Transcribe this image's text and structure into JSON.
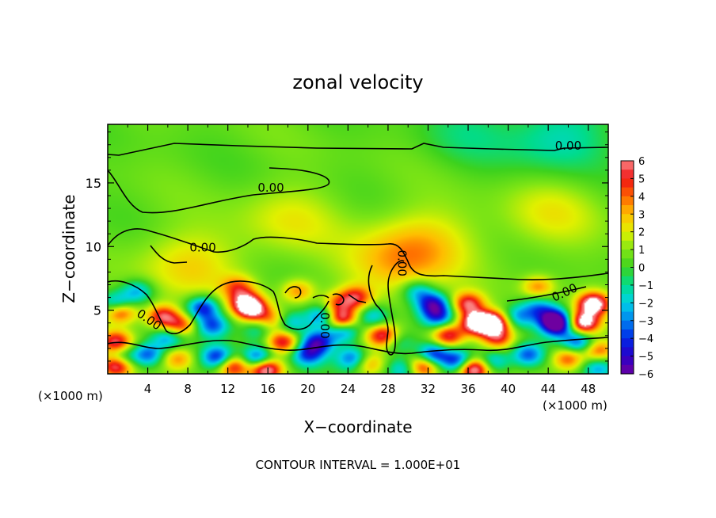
{
  "chart_data": {
    "type": "heatmap",
    "title": "zonal velocity",
    "xlabel": "X−coordinate",
    "ylabel": "Z−coordinate",
    "x_unit": "(×1000 m)",
    "y_unit": "(×1000 m)",
    "xlim": [
      0,
      50
    ],
    "ylim": [
      0,
      19.6
    ],
    "xticks": [
      4,
      8,
      12,
      16,
      20,
      24,
      28,
      32,
      36,
      40,
      44,
      48
    ],
    "yticks": [
      5,
      10,
      15
    ],
    "colorbar": {
      "min": -6,
      "max": 6,
      "ticks": [
        6,
        5,
        4,
        3,
        2,
        1,
        0,
        -1,
        -2,
        -3,
        -4,
        -5,
        -6
      ],
      "tick_labels": [
        "6",
        "5",
        "4",
        "3",
        "2",
        "1",
        "0",
        "−1",
        "−2",
        "−3",
        "−4",
        "−5",
        "−6"
      ]
    },
    "contour_labels": [
      {
        "text": "0.00",
        "x": 46,
        "y": 17.6
      },
      {
        "text": "0.00",
        "x": 16.3,
        "y": 14.3
      },
      {
        "text": "0.00",
        "x": 9.5,
        "y": 9.6
      },
      {
        "text": "0.00",
        "x": 29,
        "y": 8.7
      },
      {
        "text": "0.00",
        "x": 45.8,
        "y": 6.1
      },
      {
        "text": "0.00",
        "x": 3.9,
        "y": 4.0
      },
      {
        "text": "0.00",
        "x": 21.3,
        "y": 3.8
      }
    ],
    "features": [
      {
        "x": 1,
        "y": 5.4,
        "v": -6
      },
      {
        "x": 1.2,
        "y": 5,
        "v": 7
      },
      {
        "x": 0.8,
        "y": 2.5,
        "v": 5
      },
      {
        "x": 1.3,
        "y": 1.2,
        "v": -4
      },
      {
        "x": 0.9,
        "y": 0.7,
        "v": 7
      },
      {
        "x": 3,
        "y": 6.5,
        "v": -3
      },
      {
        "x": 5.5,
        "y": 4.5,
        "v": 5
      },
      {
        "x": 7.3,
        "y": 3.8,
        "v": 4
      },
      {
        "x": 6,
        "y": 2.8,
        "v": -3
      },
      {
        "x": 4,
        "y": 1.5,
        "v": -4
      },
      {
        "x": 7,
        "y": 1.2,
        "v": 3
      },
      {
        "x": 9.5,
        "y": 5.2,
        "v": -5
      },
      {
        "x": 10.5,
        "y": 3.8,
        "v": -4
      },
      {
        "x": 11,
        "y": 1.3,
        "v": -5
      },
      {
        "x": 12.5,
        "y": 0.6,
        "v": 5
      },
      {
        "x": 13.8,
        "y": 5.6,
        "v": 5
      },
      {
        "x": 14.5,
        "y": 5,
        "v": 5
      },
      {
        "x": 13,
        "y": 6.8,
        "v": 3
      },
      {
        "x": 15,
        "y": 3.5,
        "v": -2
      },
      {
        "x": 16.5,
        "y": 4.2,
        "v": 3
      },
      {
        "x": 15,
        "y": 1.2,
        "v": -5
      },
      {
        "x": 15.8,
        "y": 0.4,
        "v": 7
      },
      {
        "x": 17.5,
        "y": 2.5,
        "v": 5
      },
      {
        "x": 18.2,
        "y": 4,
        "v": -3
      },
      {
        "x": 19,
        "y": 6.5,
        "v": 3
      },
      {
        "x": 20,
        "y": 1.5,
        "v": -4
      },
      {
        "x": 21.5,
        "y": 4.5,
        "v": -4
      },
      {
        "x": 21,
        "y": 2.5,
        "v": -5
      },
      {
        "x": 23,
        "y": 5.5,
        "v": 3
      },
      {
        "x": 23.3,
        "y": 4.2,
        "v": 7
      },
      {
        "x": 23.5,
        "y": 3.5,
        "v": -5
      },
      {
        "x": 24.5,
        "y": 1.2,
        "v": -4
      },
      {
        "x": 24.8,
        "y": 6,
        "v": 4
      },
      {
        "x": 26.5,
        "y": 4.5,
        "v": -3
      },
      {
        "x": 27.5,
        "y": 3,
        "v": 5
      },
      {
        "x": 26,
        "y": 0.8,
        "v": 3
      },
      {
        "x": 29.5,
        "y": 0.4,
        "v": -3
      },
      {
        "x": 29,
        "y": 2.5,
        "v": -2
      },
      {
        "x": 31,
        "y": 6.5,
        "v": -3
      },
      {
        "x": 32.5,
        "y": 5.5,
        "v": -5
      },
      {
        "x": 33,
        "y": 4.5,
        "v": -4
      },
      {
        "x": 34,
        "y": 3,
        "v": 5
      },
      {
        "x": 32.5,
        "y": 1.5,
        "v": -5
      },
      {
        "x": 31.5,
        "y": 0.6,
        "v": 5
      },
      {
        "x": 35,
        "y": 1,
        "v": -5
      },
      {
        "x": 36.8,
        "y": 4,
        "v": 7
      },
      {
        "x": 36,
        "y": 5.5,
        "v": 5
      },
      {
        "x": 38.5,
        "y": 4,
        "v": 7
      },
      {
        "x": 39,
        "y": 2.8,
        "v": 4
      },
      {
        "x": 36.5,
        "y": 0.4,
        "v": 7
      },
      {
        "x": 38.5,
        "y": 1,
        "v": -3
      },
      {
        "x": 41,
        "y": 4.5,
        "v": -3
      },
      {
        "x": 42,
        "y": 1.5,
        "v": -4
      },
      {
        "x": 43,
        "y": 5.2,
        "v": -3
      },
      {
        "x": 44.5,
        "y": 4.3,
        "v": -5
      },
      {
        "x": 45,
        "y": 3.8,
        "v": -5
      },
      {
        "x": 47.5,
        "y": 4,
        "v": 7
      },
      {
        "x": 48.5,
        "y": 5.5,
        "v": 7
      },
      {
        "x": 47,
        "y": 2.5,
        "v": -4
      },
      {
        "x": 46,
        "y": 1.2,
        "v": 4
      },
      {
        "x": 49,
        "y": 1.8,
        "v": 4
      },
      {
        "x": 49,
        "y": 0.5,
        "v": -3
      },
      {
        "x": 43,
        "y": 6.8,
        "v": 3
      },
      {
        "x": 8,
        "y": 8.5,
        "v": 2
      },
      {
        "x": 31.5,
        "y": 10.2,
        "v": 2
      },
      {
        "x": 28.5,
        "y": 8.5,
        "v": 2
      },
      {
        "x": 18,
        "y": 12,
        "v": 1.5
      },
      {
        "x": 44,
        "y": 12.5,
        "v": 1.5
      },
      {
        "x": 45,
        "y": 18.5,
        "v": -2
      },
      {
        "x": 36,
        "y": 19,
        "v": -1
      }
    ],
    "background_value": 0.5
  },
  "footer": {
    "contour_interval": "CONTOUR INTERVAL = 1.000E+01"
  }
}
